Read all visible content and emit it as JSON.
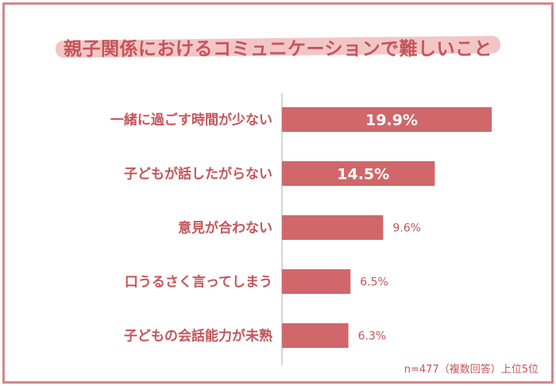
{
  "title": "親子関係におけるコミュニケーションで難しいこと",
  "note": "n=477（複数回答）上位5位",
  "colors": {
    "bar": "#d0676a",
    "text": "#c5555a",
    "value_inside": "#ffffff",
    "axis": "#c8c8c8"
  },
  "chart_data": {
    "type": "bar",
    "orientation": "horizontal",
    "categories": [
      "一緒に過ごす時間が少ない",
      "子どもが話したがらない",
      "意見が合わない",
      "口うるさく言ってしまう",
      "子どもの会話能力が未熟"
    ],
    "values": [
      19.9,
      14.5,
      9.6,
      6.5,
      6.3
    ],
    "value_labels": [
      "19.9%",
      "14.5%",
      "9.6%",
      "6.5%",
      "6.3%"
    ],
    "xlim": [
      0,
      22
    ],
    "grid": false,
    "legend": "none"
  }
}
